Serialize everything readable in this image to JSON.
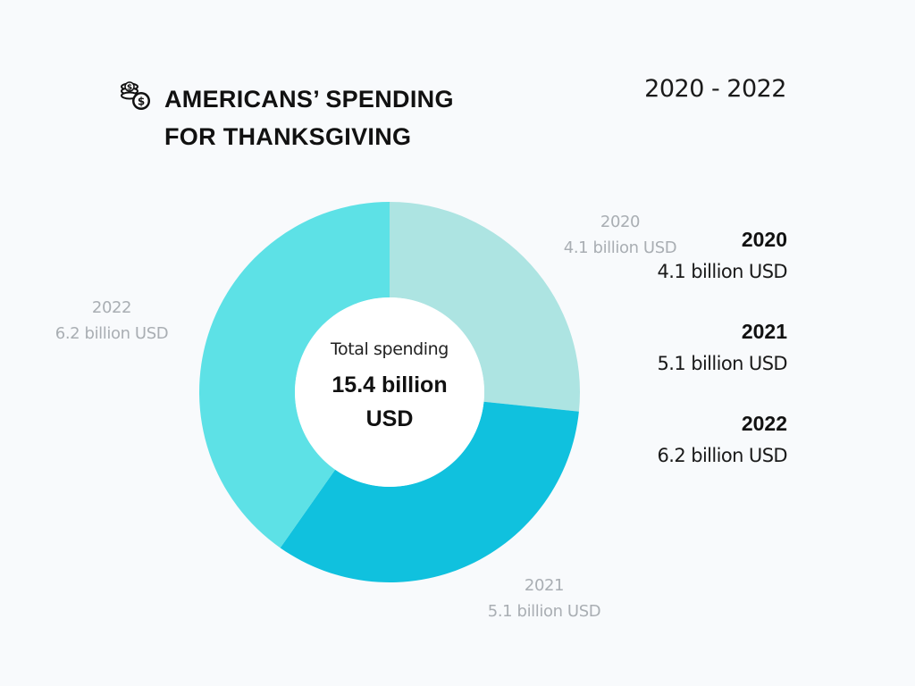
{
  "header": {
    "icon": "coins-icon",
    "title_line1": "AMERICANS’ SPENDING",
    "title_line2": "FOR THANKSGIVING",
    "range": "2020 - 2022"
  },
  "center": {
    "label": "Total spending",
    "value_line1": "15.4 billion",
    "value_line2": "USD"
  },
  "chart_data": {
    "type": "pie",
    "donut": true,
    "title": "AMERICANS’ SPENDING FOR THANKSGIVING",
    "subtitle": "2020 - 2022",
    "unit": "billion USD",
    "total": 15.4,
    "slices": [
      {
        "label": "2020",
        "value": 4.1,
        "value_text": "4.1 billion USD",
        "color": "#ade4e2"
      },
      {
        "label": "2021",
        "value": 5.1,
        "value_text": "5.1 billion USD",
        "color": "#10c1de"
      },
      {
        "label": "2022",
        "value": 6.2,
        "value_text": "6.2 billion USD",
        "color": "#5de1e6"
      }
    ],
    "legend_position": "right"
  }
}
